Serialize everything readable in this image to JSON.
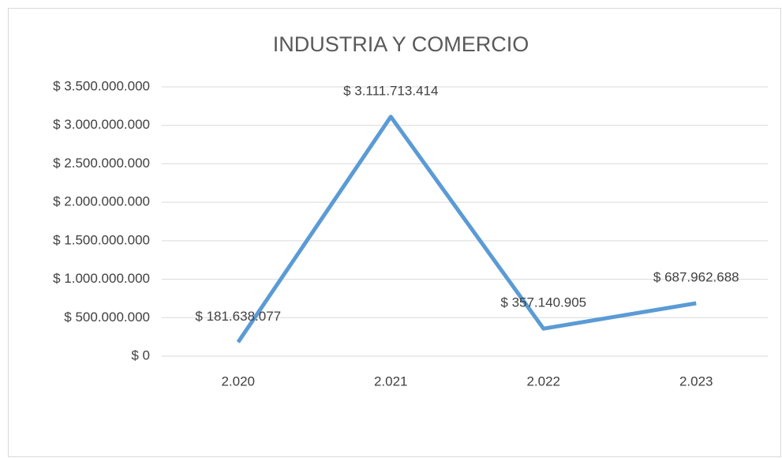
{
  "chart_data": {
    "type": "line",
    "title": "INDUSTRIA Y COMERCIO",
    "categories": [
      "2.020",
      "2.021",
      "2.022",
      "2.023"
    ],
    "values": [
      181638077,
      3111713414,
      357140905,
      687962688
    ],
    "value_labels": [
      "$ 181.638.077",
      "$ 3.111.713.414",
      "$ 357.140.905",
      "$ 687.962.688"
    ],
    "color": "#5b9bd5",
    "ylim": [
      0,
      3500000000
    ],
    "yticks": [
      {
        "value": 0,
        "label": "$ 0"
      },
      {
        "value": 500000000,
        "label": "$ 500.000.000"
      },
      {
        "value": 1000000000,
        "label": "$ 1.000.000.000"
      },
      {
        "value": 1500000000,
        "label": "$ 1.500.000.000"
      },
      {
        "value": 2000000000,
        "label": "$ 2.000.000.000"
      },
      {
        "value": 2500000000,
        "label": "$ 2.500.000.000"
      },
      {
        "value": 3000000000,
        "label": "$ 3.000.000.000"
      },
      {
        "value": 3500000000,
        "label": "$ 3.500.000.000"
      }
    ],
    "grid": true
  }
}
